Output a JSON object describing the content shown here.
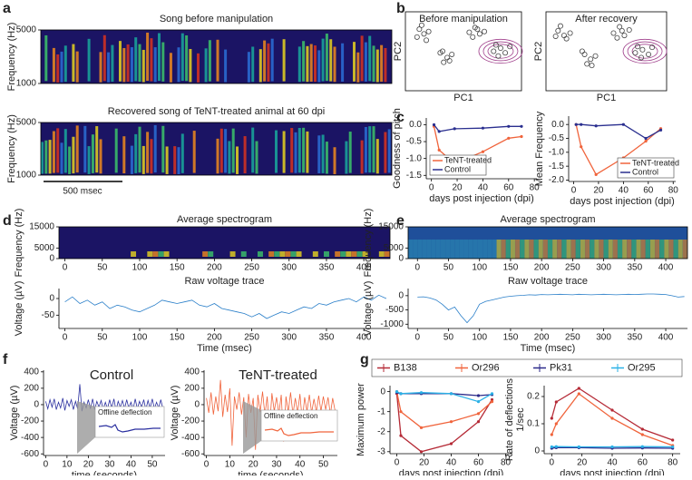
{
  "chart_data": [
    {
      "type": "spectrogram",
      "panel": "a",
      "title": "Song before manipulation",
      "ylabel": "Frequency (Hz)",
      "ylim": [
        1000,
        5000
      ],
      "yticks": [
        1000,
        5000
      ]
    },
    {
      "type": "spectrogram",
      "title": "Recovered song of TeNT-treated animal at 60 dpi",
      "title_color": "#f0643c",
      "ylabel": "Frequency (Hz)",
      "ylim": [
        1000,
        5000
      ],
      "yticks": [
        1000,
        5000
      ],
      "scalebar": "500 msec"
    },
    {
      "type": "scatter",
      "panel": "b",
      "title": "Before manipulation",
      "xlabel": "PC1",
      "ylabel": "PC2",
      "xlim": [
        0,
        10
      ],
      "ylim": [
        0,
        10
      ],
      "color": "#444444",
      "x": [
        1.2,
        1.6,
        1.0,
        2.0,
        1.4,
        1.8,
        3.0,
        3.6,
        3.3,
        4.0,
        3.8,
        3.2,
        5.5,
        6.0,
        6.4,
        5.8,
        6.2,
        6.8,
        7.6,
        8.2,
        8.6,
        8.0,
        9.0,
        7.8
      ],
      "y": [
        7.8,
        7.2,
        6.8,
        7.5,
        8.3,
        6.4,
        4.8,
        4.2,
        3.6,
        4.6,
        3.8,
        5.0,
        7.4,
        8.0,
        7.2,
        6.8,
        7.8,
        7.5,
        5.0,
        5.4,
        4.8,
        4.4,
        5.6,
        5.8
      ]
    },
    {
      "type": "scatter",
      "title": "After recovery",
      "title_color": "#f0643c",
      "xlabel": "PC1",
      "ylabel": "PC2",
      "xlim": [
        0,
        10
      ],
      "ylim": [
        0,
        10
      ],
      "color": "#444444",
      "x": [
        1.0,
        1.5,
        1.2,
        2.0,
        1.7,
        0.8,
        3.2,
        3.7,
        3.4,
        4.1,
        3.0,
        3.8,
        5.6,
        6.1,
        6.5,
        5.9,
        6.3,
        6.9,
        7.4,
        8.0,
        8.5,
        7.9,
        8.8,
        7.6
      ],
      "y": [
        7.6,
        7.0,
        8.2,
        7.3,
        6.6,
        6.9,
        4.6,
        4.0,
        3.4,
        4.4,
        5.0,
        3.2,
        7.3,
        8.1,
        7.0,
        6.7,
        7.6,
        7.7,
        4.8,
        5.2,
        4.6,
        4.2,
        5.5,
        5.6
      ]
    },
    {
      "type": "line",
      "panel": "c",
      "xlabel": "days post injection (dpi)",
      "ylabel": "Goodness of pitch",
      "xlim": [
        -4,
        82
      ],
      "ylim": [
        -1.6,
        0.2
      ],
      "xticks": [
        0,
        20,
        40,
        60,
        80
      ],
      "yticks": [
        {
          "value": 0,
          "label": "0.0"
        },
        -0.5,
        {
          "value": -1,
          "label": "-1.0"
        },
        -1.5
      ],
      "legend": "lower left",
      "markers": true,
      "x": [
        2,
        6,
        18,
        40,
        60,
        70
      ],
      "series": [
        {
          "name": "TeNT-treated",
          "color": "#f0643c",
          "values": [
            -0.05,
            -0.75,
            -1.15,
            -0.8,
            -0.4,
            -0.35
          ]
        },
        {
          "name": "Control",
          "color": "#2a2f8f",
          "values": [
            0,
            -0.2,
            -0.12,
            -0.1,
            -0.05,
            -0.05
          ]
        }
      ]
    },
    {
      "type": "line",
      "xlabel": "days post injection (dpi)",
      "ylabel": "Mean Frequency",
      "xlim": [
        -4,
        82
      ],
      "ylim": [
        -2.05,
        0.3
      ],
      "xticks": [
        0,
        20,
        40,
        60,
        80
      ],
      "yticks": [
        {
          "value": 0,
          "label": "0.0"
        },
        -0.5,
        {
          "value": -1,
          "label": "-1.0"
        },
        -1.5,
        {
          "value": -2,
          "label": "-2.0"
        }
      ],
      "legend": "lower right",
      "markers": true,
      "x": [
        2,
        6,
        18,
        40,
        58,
        70
      ],
      "series": [
        {
          "name": "TeNT-treated",
          "color": "#f0643c",
          "values": [
            0,
            -0.8,
            -1.8,
            -1.2,
            -0.6,
            -0.15
          ]
        },
        {
          "name": "Control",
          "color": "#2a2f8f",
          "values": [
            0,
            0,
            -0.05,
            0,
            -0.5,
            -0.2
          ]
        }
      ]
    },
    {
      "type": "spectrogram",
      "panel": "d",
      "title": "Average spectrogram",
      "ylabel": "Frequency (Hz)",
      "ylim": [
        0,
        15000
      ],
      "yticks": [
        0,
        5000,
        15000
      ],
      "xlim": [
        -8,
        435
      ],
      "xticks": [
        0,
        50,
        100,
        150,
        200,
        250,
        300,
        350,
        400
      ]
    },
    {
      "type": "line",
      "title": "Raw voltage trace",
      "xlabel": "Time (msec)",
      "ylabel": "Voltage (µV)",
      "xlim": [
        -8,
        435
      ],
      "ylim": [
        -90,
        30
      ],
      "yticks": [
        -50,
        0
      ],
      "xticks": [
        0,
        50,
        100,
        150,
        200,
        250,
        300,
        350,
        400
      ],
      "x": [
        0,
        10,
        20,
        30,
        40,
        50,
        60,
        70,
        80,
        90,
        100,
        110,
        120,
        130,
        140,
        150,
        160,
        170,
        180,
        190,
        200,
        210,
        220,
        230,
        240,
        250,
        260,
        270,
        280,
        290,
        300,
        310,
        320,
        330,
        340,
        350,
        360,
        370,
        380,
        390,
        400,
        410,
        420,
        430
      ],
      "series": [
        {
          "color": "#2a7fc9",
          "values": [
            -10,
            5,
            -15,
            -5,
            -20,
            -10,
            -30,
            -20,
            -25,
            -35,
            -40,
            -30,
            -20,
            -5,
            -10,
            -15,
            -10,
            -5,
            -20,
            -25,
            -15,
            -30,
            -35,
            -40,
            -45,
            -55,
            -45,
            -60,
            -50,
            -40,
            -45,
            -35,
            -25,
            -30,
            -15,
            -20,
            -10,
            -5,
            0,
            -10,
            5,
            -5,
            10,
            0
          ]
        }
      ]
    },
    {
      "type": "spectrogram",
      "panel": "e",
      "title": "Average spectrogram",
      "ylabel": "Frequency (Hz)",
      "ylim": [
        0,
        15000
      ],
      "yticks": [
        0,
        5000,
        15000
      ],
      "xlim": [
        -15,
        435
      ],
      "xticks": [
        0,
        50,
        100,
        150,
        200,
        250,
        300,
        350,
        400
      ]
    },
    {
      "type": "line",
      "title": "Raw voltage trace",
      "xlabel": "Time (msec)",
      "ylabel": "Voltage (µV)",
      "xlim": [
        -15,
        435
      ],
      "ylim": [
        -1150,
        250
      ],
      "yticks": [
        -1000,
        -500,
        0
      ],
      "xticks": [
        0,
        50,
        100,
        150,
        200,
        250,
        300,
        350,
        400
      ],
      "x": [
        0,
        10,
        20,
        30,
        40,
        50,
        60,
        70,
        80,
        90,
        100,
        110,
        120,
        130,
        140,
        150,
        160,
        170,
        180,
        190,
        200,
        210,
        220,
        230,
        240,
        250,
        260,
        270,
        280,
        290,
        300,
        310,
        320,
        330,
        340,
        350,
        360,
        370,
        380,
        390,
        400,
        410,
        420,
        430
      ],
      "series": [
        {
          "color": "#2a7fc9",
          "values": [
            -50,
            -40,
            -80,
            -150,
            -300,
            -500,
            -400,
            -700,
            -950,
            -700,
            -300,
            -200,
            -150,
            -100,
            -50,
            -20,
            0,
            10,
            30,
            20,
            40,
            30,
            40,
            50,
            40,
            30,
            50,
            40,
            30,
            40,
            50,
            40,
            30,
            40,
            50,
            40,
            50,
            60,
            60,
            50,
            40,
            0,
            -50,
            -30
          ]
        }
      ]
    },
    {
      "type": "line",
      "panel": "f",
      "title": "Control",
      "title_color": "#2a2f8f",
      "xlabel": "time (seconds)",
      "ylabel": "Voltage (µV)",
      "xlim": [
        -1,
        56
      ],
      "ylim": [
        -620,
        420
      ],
      "yticks": [
        -600,
        -400,
        -200,
        0,
        200,
        400
      ],
      "xticks": [
        0,
        10,
        20,
        30,
        40,
        50
      ],
      "inset_label": "Offline deflection",
      "x": [
        0,
        1,
        2,
        3,
        4,
        5,
        6,
        7,
        8,
        9,
        10,
        11,
        12,
        13,
        14,
        15,
        16,
        17,
        18,
        19,
        20,
        21,
        22,
        23,
        24,
        25,
        26,
        27,
        28,
        29,
        30,
        31,
        32,
        33,
        34,
        35,
        36,
        37,
        38,
        39,
        40,
        41,
        42,
        43,
        44,
        45,
        46,
        47,
        48,
        49,
        50,
        51,
        52,
        53,
        54,
        55
      ],
      "series": [
        {
          "color": "#2a2f9f",
          "values": [
            40,
            -50,
            60,
            -30,
            70,
            -60,
            30,
            -40,
            80,
            -70,
            50,
            -20,
            60,
            -60,
            40,
            -50,
            250,
            -80,
            30,
            -40,
            60,
            -50,
            70,
            -60,
            40,
            -30,
            50,
            -60,
            30,
            -50,
            60,
            -40,
            70,
            -70,
            40,
            -30,
            50,
            -50,
            60,
            -40,
            30,
            -60,
            70,
            -50,
            40,
            -30,
            60,
            -60,
            50,
            -40,
            70,
            -50,
            30,
            -40,
            60,
            -50
          ]
        }
      ]
    },
    {
      "type": "line",
      "title": "TeNT-treated",
      "title_color": "#f0643c",
      "xlabel": "time (seconds)",
      "ylabel": "Voltage (µV)",
      "xlim": [
        -1,
        56
      ],
      "ylim": [
        -620,
        420
      ],
      "yticks": [
        -600,
        -400,
        -200,
        0,
        200,
        400
      ],
      "xticks": [
        0,
        10,
        20,
        30,
        40,
        50
      ],
      "inset_label": "Offline deflection",
      "x": [
        0,
        1,
        2,
        3,
        4,
        5,
        6,
        7,
        8,
        9,
        10,
        11,
        12,
        13,
        14,
        15,
        16,
        17,
        18,
        19,
        20,
        21,
        22,
        23,
        24,
        25,
        26,
        27,
        28,
        29,
        30,
        31,
        32,
        33,
        34,
        35,
        36,
        37,
        38,
        39,
        40,
        41,
        42,
        43,
        44,
        45,
        46,
        47,
        48,
        49,
        50,
        51,
        52,
        53,
        54,
        55
      ],
      "series": [
        {
          "color": "#f0643c",
          "values": [
            80,
            -100,
            150,
            -120,
            100,
            -80,
            300,
            -150,
            120,
            -90,
            200,
            -500,
            100,
            -60,
            150,
            -120,
            90,
            -400,
            130,
            -100,
            80,
            -550,
            120,
            -90,
            160,
            -130,
            100,
            -300,
            140,
            -80,
            90,
            -110,
            120,
            -450,
            100,
            -90,
            150,
            -120,
            80,
            -100,
            130,
            -200,
            90,
            -80,
            120,
            -100,
            70,
            -90,
            110,
            -80,
            100,
            -60,
            90,
            -120,
            80,
            -70
          ]
        }
      ]
    },
    {
      "type": "line",
      "panel": "g",
      "xlabel": "days post injection (dpi)",
      "ylabel": "Maximum power",
      "xlim": [
        -5,
        85
      ],
      "ylim": [
        -3.1,
        0.3
      ],
      "yticks": [
        -3,
        -2,
        -1,
        0
      ],
      "xticks": [
        0,
        20,
        40,
        60,
        80
      ],
      "legend": "top",
      "markers": true,
      "x": [
        0,
        3,
        18,
        40,
        60,
        70
      ],
      "series": [
        {
          "name": "B138",
          "color": "#b52a36",
          "values": [
            -0.1,
            -2.2,
            -3.0,
            -2.6,
            -1.5,
            -0.4
          ]
        },
        {
          "name": "Or296",
          "color": "#f0643c",
          "values": [
            0,
            -1.0,
            -1.8,
            -1.5,
            -1.1,
            -0.5
          ]
        },
        {
          "name": "Pk31",
          "color": "#2c2a8a",
          "values": [
            -0.05,
            -0.1,
            -0.1,
            -0.1,
            -0.2,
            -0.15
          ]
        },
        {
          "name": "Or295",
          "color": "#2ab0e6",
          "values": [
            0,
            -0.1,
            -0.05,
            -0.1,
            -0.5,
            -0.1
          ]
        }
      ]
    },
    {
      "type": "line",
      "xlabel": "days post injection (dpi)",
      "ylabel": [
        "Rate of deflections",
        "1/sec"
      ],
      "xlim": [
        -5,
        85
      ],
      "ylim": [
        -0.01,
        0.24
      ],
      "yticks": [
        0,
        0.1,
        0.2
      ],
      "xticks": [
        0,
        20,
        40,
        60,
        80
      ],
      "markers": true,
      "x": [
        0,
        3,
        18,
        40,
        60,
        80
      ],
      "series": [
        {
          "color": "#b52a36",
          "values": [
            0.12,
            0.18,
            0.23,
            0.15,
            0.08,
            0.04
          ]
        },
        {
          "color": "#f0643c",
          "values": [
            0.06,
            0.1,
            0.21,
            0.12,
            0.06,
            0.02
          ]
        },
        {
          "color": "#2c2a8a",
          "values": [
            0.01,
            0.012,
            0.012,
            0.01,
            0.011,
            0.01
          ]
        },
        {
          "color": "#2ab0e6",
          "values": [
            0.015,
            0.016,
            0.015,
            0.015,
            0.016,
            0.015
          ]
        }
      ]
    }
  ]
}
